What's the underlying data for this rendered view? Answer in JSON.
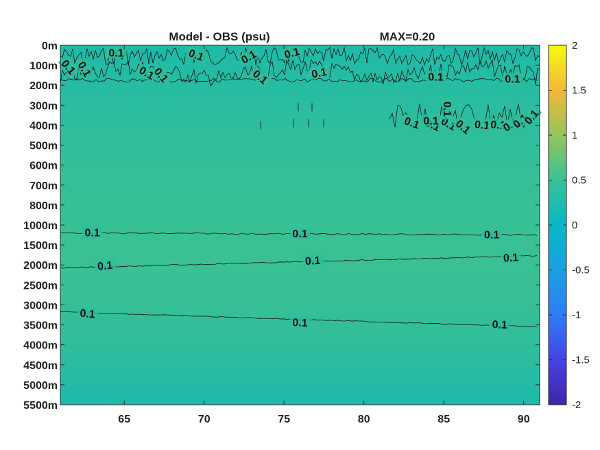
{
  "chart_data": {
    "type": "heatmap",
    "title": "Model - OBS (psu)",
    "max_label": "MAX=0.20",
    "xlabel": "",
    "ylabel": "",
    "x_range": [
      61,
      91
    ],
    "x_ticks": [
      65,
      70,
      75,
      80,
      85,
      90
    ],
    "y_tick_labels": [
      "0m",
      "100m",
      "200m",
      "300m",
      "400m",
      "500m",
      "600m",
      "700m",
      "800m",
      "1000m",
      "1500m",
      "2000m",
      "2500m",
      "3000m",
      "3500m",
      "4000m",
      "4500m",
      "5000m",
      "5500m"
    ],
    "colorbar": {
      "range": [
        -2,
        2
      ],
      "ticks": [
        "2",
        "1.5",
        "1",
        "0.5",
        "0",
        "-0.5",
        "-1",
        "-1.5",
        "-2"
      ],
      "colormap": "parula"
    },
    "field_value_estimate": [
      {
        "depth": "0m",
        "value": 0.05
      },
      {
        "depth": "700m",
        "value": 0.12
      },
      {
        "depth": "1500m",
        "value": 0.14
      },
      {
        "depth": "2500m",
        "value": 0.16
      },
      {
        "depth": "3500m",
        "value": 0.12
      },
      {
        "depth": "5500m",
        "value": 0.05
      }
    ],
    "contour_level": 0.1,
    "contour_labels": [
      {
        "text": "0.1",
        "x": 64.5,
        "depth_index": 0.4,
        "angle": 0
      },
      {
        "text": "0.1",
        "x": 61.5,
        "depth_index": 1.1,
        "angle": 50
      },
      {
        "text": "0.1",
        "x": 62.5,
        "depth_index": 1.2,
        "angle": 60
      },
      {
        "text": "0.1",
        "x": 66.4,
        "depth_index": 1.4,
        "angle": 30
      },
      {
        "text": "0.1",
        "x": 67.3,
        "depth_index": 1.5,
        "angle": 50
      },
      {
        "text": "0.1",
        "x": 69.5,
        "depth_index": 0.5,
        "angle": 20
      },
      {
        "text": "0.1",
        "x": 72.8,
        "depth_index": 0.6,
        "angle": -30
      },
      {
        "text": "0.1",
        "x": 73.5,
        "depth_index": 1.6,
        "angle": 40
      },
      {
        "text": "0.1",
        "x": 75.5,
        "depth_index": 0.4,
        "angle": -15
      },
      {
        "text": "0.1",
        "x": 77.2,
        "depth_index": 1.4,
        "angle": -10
      },
      {
        "text": "0.1",
        "x": 84.5,
        "depth_index": 1.6,
        "angle": 0
      },
      {
        "text": "0.1",
        "x": 89.3,
        "depth_index": 1.7,
        "angle": 0
      },
      {
        "text": "0.1",
        "x": 63.0,
        "depth_index": 9.4,
        "angle": 0
      },
      {
        "text": "0.1",
        "x": 76.0,
        "depth_index": 9.45,
        "angle": 0
      },
      {
        "text": "0.1",
        "x": 88.0,
        "depth_index": 9.5,
        "angle": 0
      },
      {
        "text": "0.1",
        "x": 63.8,
        "depth_index": 11.05,
        "angle": -5
      },
      {
        "text": "0.1",
        "x": 76.8,
        "depth_index": 10.8,
        "angle": -3
      },
      {
        "text": "0.1",
        "x": 89.2,
        "depth_index": 10.65,
        "angle": -3
      },
      {
        "text": "0.1",
        "x": 62.7,
        "depth_index": 13.45,
        "angle": 5
      },
      {
        "text": "0.1",
        "x": 76.0,
        "depth_index": 13.9,
        "angle": 2
      },
      {
        "text": "0.1",
        "x": 88.5,
        "depth_index": 14.0,
        "angle": 2
      },
      {
        "text": "0.1",
        "x": 83.0,
        "depth_index": 3.9,
        "angle": 20
      },
      {
        "text": "0.1",
        "x": 84.3,
        "depth_index": 4.0,
        "angle": 25
      },
      {
        "text": "0.1",
        "x": 85.3,
        "depth_index": 3.95,
        "angle": 30
      },
      {
        "text": "0.1",
        "x": 85.2,
        "depth_index": 3.2,
        "angle": 90
      },
      {
        "text": "0.1",
        "x": 86.2,
        "depth_index": 4.1,
        "angle": 40
      },
      {
        "text": "0.1",
        "x": 87.4,
        "depth_index": 4.0,
        "angle": 5
      },
      {
        "text": "0.1",
        "x": 88.4,
        "depth_index": 4.0,
        "angle": 5
      },
      {
        "text": "0.1",
        "x": 89.2,
        "depth_index": 4.0,
        "angle": -30
      },
      {
        "text": "0.1",
        "x": 89.8,
        "depth_index": 3.8,
        "angle": -40
      },
      {
        "text": "0.1",
        "x": 90.5,
        "depth_index": 3.6,
        "angle": -50
      },
      {
        "text": "0.1",
        "x": 84.2,
        "depth_index": 3.8,
        "angle": 0
      }
    ]
  }
}
